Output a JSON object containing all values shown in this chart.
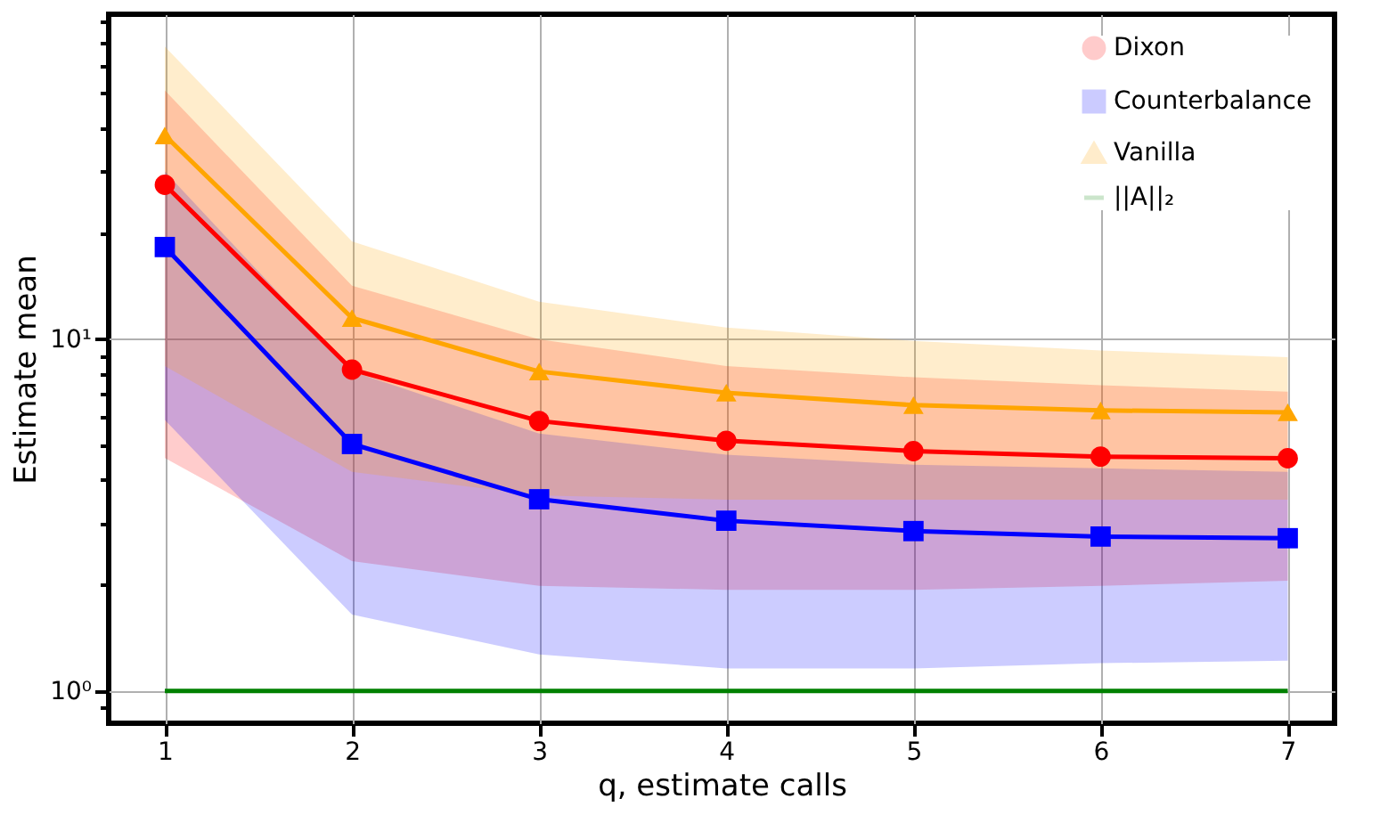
{
  "chart_data": {
    "type": "line",
    "xlabel": "q, estimate calls",
    "ylabel": "Estimate mean",
    "x": [
      1,
      2,
      3,
      4,
      5,
      6,
      7
    ],
    "series": [
      {
        "name": "Dixon",
        "color": "#ff0000",
        "marker": "circle",
        "values": [
          27.5,
          8.2,
          5.86,
          5.15,
          4.81,
          4.64,
          4.59
        ],
        "lower": [
          4.6,
          2.34,
          1.99,
          1.94,
          1.94,
          1.99,
          2.06
        ],
        "upper": [
          51,
          14.2,
          10.0,
          8.4,
          7.8,
          7.4,
          7.1
        ]
      },
      {
        "name": "Counterbalance",
        "color": "#0000ff",
        "marker": "square",
        "values": [
          18.3,
          5.04,
          3.51,
          3.05,
          2.85,
          2.75,
          2.72
        ],
        "lower": [
          5.9,
          1.65,
          1.27,
          1.16,
          1.16,
          1.2,
          1.22
        ],
        "upper": [
          30,
          8.1,
          5.4,
          4.7,
          4.4,
          4.3,
          4.2
        ]
      },
      {
        "name": "Vanilla",
        "color": "#ffa500",
        "marker": "triangle",
        "values": [
          38,
          11.5,
          8.1,
          7.05,
          6.5,
          6.28,
          6.2
        ],
        "lower": [
          8.4,
          4.2,
          3.6,
          3.5,
          3.5,
          3.5,
          3.5
        ],
        "upper": [
          68,
          19,
          12.8,
          10.8,
          9.9,
          9.3,
          8.9
        ]
      },
      {
        "name": "||A||₂",
        "color": "#008000",
        "marker": "none",
        "values": [
          1,
          1,
          1,
          1,
          1,
          1,
          1
        ]
      }
    ],
    "log": "y",
    "grid": true,
    "legend": "top right",
    "xlim": [
      0.7,
      7.25
    ],
    "xticks": [
      1,
      2,
      3,
      4,
      5,
      6,
      7
    ],
    "ylim": [
      0.81,
      84
    ],
    "yticks": [
      {
        "value": 0.9,
        "label": null
      },
      {
        "value": 1,
        "label": "10⁰"
      },
      {
        "value": 2,
        "label": null
      },
      {
        "value": 3,
        "label": null
      },
      {
        "value": 4,
        "label": null
      },
      {
        "value": 5,
        "label": null
      },
      {
        "value": 6,
        "label": null
      },
      {
        "value": 7,
        "label": null
      },
      {
        "value": 8,
        "label": null
      },
      {
        "value": 9,
        "label": null
      },
      {
        "value": 10,
        "label": "10¹"
      },
      {
        "value": 20,
        "label": null
      },
      {
        "value": 30,
        "label": null
      },
      {
        "value": 40,
        "label": null
      },
      {
        "value": 50,
        "label": null
      },
      {
        "value": 60,
        "label": null
      },
      {
        "value": 70,
        "label": null
      },
      {
        "value": 80,
        "label": null
      }
    ]
  }
}
